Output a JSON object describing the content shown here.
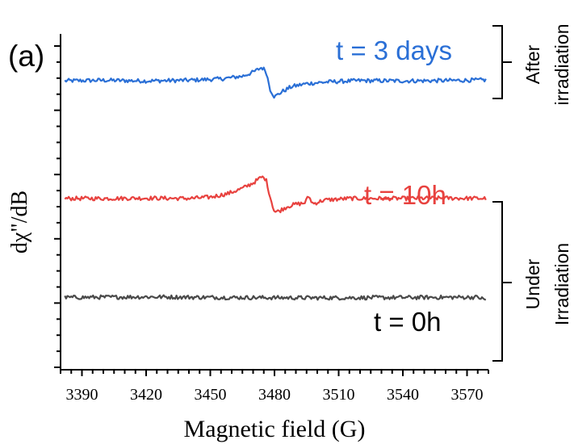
{
  "chart_data": {
    "type": "line",
    "panel_label": "(a)",
    "xlabel": "Magnetic field (G)",
    "ylabel": "dχ\"/dB",
    "xlim": [
      3380,
      3580
    ],
    "x_ticks": [
      3390,
      3420,
      3450,
      3480,
      3510,
      3540,
      3570
    ],
    "grid": false,
    "legend": "none",
    "series": [
      {
        "label": "t = 3 days",
        "color": "#2a6fd6",
        "baseline": 0.86,
        "points": [
          [
            3380,
            0.86
          ],
          [
            3400,
            0.862
          ],
          [
            3420,
            0.86
          ],
          [
            3440,
            0.862
          ],
          [
            3455,
            0.866
          ],
          [
            3465,
            0.874
          ],
          [
            3470,
            0.886
          ],
          [
            3474,
            0.9
          ],
          [
            3476,
            0.89
          ],
          [
            3478,
            0.835
          ],
          [
            3480,
            0.812
          ],
          [
            3483,
            0.826
          ],
          [
            3488,
            0.843
          ],
          [
            3495,
            0.852
          ],
          [
            3505,
            0.857
          ],
          [
            3520,
            0.861
          ],
          [
            3540,
            0.86
          ],
          [
            3560,
            0.861
          ],
          [
            3580,
            0.863
          ]
        ]
      },
      {
        "label": "t = 10h",
        "color": "#e8423f",
        "baseline": 0.51,
        "points": [
          [
            3380,
            0.51
          ],
          [
            3400,
            0.51
          ],
          [
            3420,
            0.511
          ],
          [
            3440,
            0.51
          ],
          [
            3450,
            0.514
          ],
          [
            3458,
            0.524
          ],
          [
            3465,
            0.54
          ],
          [
            3470,
            0.556
          ],
          [
            3474,
            0.574
          ],
          [
            3476,
            0.568
          ],
          [
            3478,
            0.514
          ],
          [
            3480,
            0.47
          ],
          [
            3482,
            0.472
          ],
          [
            3486,
            0.486
          ],
          [
            3490,
            0.493
          ],
          [
            3494,
            0.496
          ],
          [
            3496,
            0.516
          ],
          [
            3498,
            0.494
          ],
          [
            3503,
            0.505
          ],
          [
            3515,
            0.51
          ],
          [
            3540,
            0.51
          ],
          [
            3560,
            0.511
          ],
          [
            3580,
            0.51
          ]
        ]
      },
      {
        "label": "t = 0h",
        "color": "#4a4a4a",
        "baseline": 0.215,
        "points": [
          [
            3380,
            0.215
          ],
          [
            3420,
            0.217
          ],
          [
            3460,
            0.215
          ],
          [
            3500,
            0.214
          ],
          [
            3540,
            0.215
          ],
          [
            3575,
            0.216
          ],
          [
            3580,
            0.205
          ]
        ]
      }
    ],
    "brackets": [
      {
        "label_lines": [
          "After",
          "irradiation"
        ]
      },
      {
        "label_lines": [
          "Under",
          "Irradiation"
        ]
      }
    ]
  }
}
